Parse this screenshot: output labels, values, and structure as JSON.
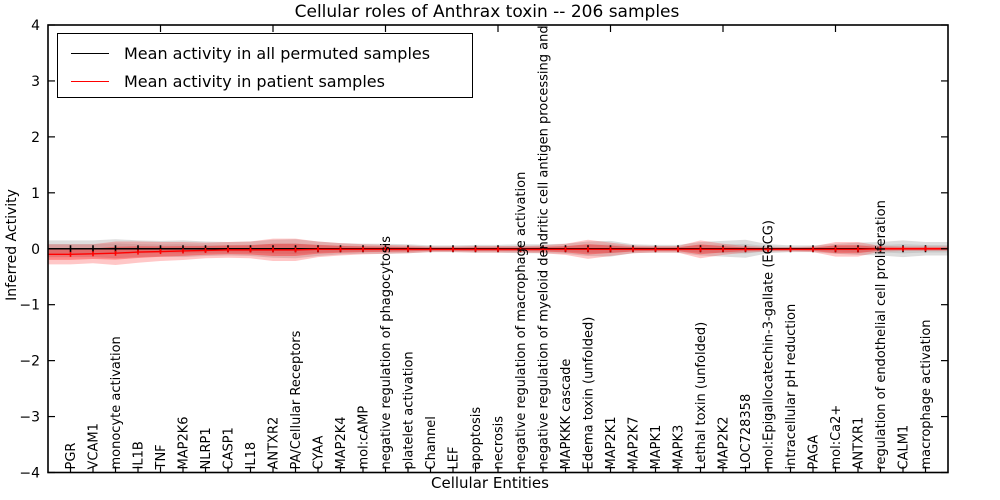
{
  "figure": {
    "title": "Cellular roles of Anthrax toxin -- 206 samples",
    "xlabel": "Cellular Entities",
    "ylabel": "Inferred Activity"
  },
  "legend": {
    "items": [
      {
        "label": "Mean activity in all permuted samples",
        "color": "#000000"
      },
      {
        "label": "Mean activity in patient samples",
        "color": "#ff0000"
      }
    ]
  },
  "chart_data": {
    "type": "line",
    "title": "Cellular roles of Anthrax toxin -- 206 samples",
    "xlabel": "Cellular Entities",
    "ylabel": "Inferred Activity",
    "ylim": [
      -4,
      4
    ],
    "yticks": [
      4,
      3,
      2,
      1,
      0,
      -1,
      -2,
      -3,
      -4
    ],
    "grid": false,
    "legend_position": "upper left",
    "x_major_tick_every": 5,
    "categories": [
      "PGR",
      "VCAM1",
      "monocyte activation",
      "IL1B",
      "TNF",
      "MAP2K6",
      "NLRP1",
      "CASP1",
      "IL18",
      "ANTXR2",
      "PA/Cellular Receptors",
      "CYAA",
      "MAP2K4",
      "mol:cAMP",
      "negative regulation of phagocytosis",
      "platelet activation",
      "Channel",
      "LEF",
      "apoptosis",
      "necrosis",
      "negative regulation of macrophage activation",
      "negative regulation of myeloid dendritic cell antigen processing and",
      "MAPKKK cascade",
      "Edema toxin (unfolded)",
      "MAP2K1",
      "MAP2K7",
      "MAPK1",
      "MAPK3",
      "Lethal toxin (unfolded)",
      "MAP2K2",
      "LOC728358",
      "mol:Epigallocatechin-3-gallate (EGCG)",
      "intracellular pH reduction",
      "PAGA",
      "mol:Ca2+",
      "ANTXR1",
      "regulation of endothelial cell proliferation",
      "CALM1",
      "macrophage activation"
    ],
    "series": [
      {
        "id": "permuted",
        "name": "Mean activity in all permuted samples",
        "color": "#000000",
        "line_width": 1.4,
        "marker_half": 3.5,
        "band_color": "#909090",
        "band_opacity": [
          0.3,
          0.25
        ],
        "values": [
          0,
          0,
          0,
          0,
          0,
          0,
          0,
          0,
          0,
          0,
          0,
          0,
          0,
          0,
          0,
          0,
          0,
          0,
          0,
          0,
          0,
          0,
          0,
          0,
          0,
          0,
          0,
          0,
          0,
          0,
          0,
          0,
          0,
          0,
          0,
          0,
          0,
          0,
          0
        ],
        "band_halfwidth": [
          0.15,
          0.15,
          0.17,
          0.15,
          0.14,
          0.15,
          0.13,
          0.12,
          0.13,
          0.16,
          0.17,
          0.13,
          0.1,
          0.09,
          0.09,
          0.08,
          0.06,
          0.06,
          0.07,
          0.07,
          0.08,
          0.08,
          0.09,
          0.13,
          0.14,
          0.08,
          0.07,
          0.07,
          0.12,
          0.14,
          0.16,
          0.08,
          0.06,
          0.06,
          0.09,
          0.11,
          0.12,
          0.15,
          0.12
        ]
      },
      {
        "id": "patient",
        "name": "Mean activity in patient samples",
        "color": "#ff0000",
        "line_width": 1.4,
        "marker_half": 2.5,
        "band_color": "#ff0000",
        "band_opacity": [
          0.22,
          0.32
        ],
        "values": [
          -0.1,
          -0.09,
          -0.08,
          -0.06,
          -0.05,
          -0.04,
          -0.03,
          -0.02,
          -0.02,
          -0.02,
          -0.02,
          -0.01,
          -0.01,
          -0.01,
          -0.01,
          -0.01,
          -0.01,
          -0.01,
          -0.01,
          -0.01,
          -0.01,
          -0.01,
          -0.01,
          -0.01,
          -0.01,
          -0.01,
          -0.01,
          -0.01,
          -0.01,
          -0.01,
          -0.01,
          -0.01,
          -0.01,
          -0.01,
          -0.01,
          -0.01,
          0,
          0,
          0
        ],
        "band_halfwidth": [
          0.18,
          0.17,
          0.21,
          0.19,
          0.17,
          0.16,
          0.14,
          0.14,
          0.15,
          0.2,
          0.2,
          0.14,
          0.11,
          0.09,
          0.08,
          0.07,
          0.05,
          0.05,
          0.06,
          0.06,
          0.06,
          0.07,
          0.1,
          0.17,
          0.12,
          0.07,
          0.06,
          0.06,
          0.16,
          0.1,
          0.06,
          0.04,
          0.04,
          0.05,
          0.13,
          0.13,
          0.05,
          0.04,
          0.04
        ]
      }
    ]
  }
}
